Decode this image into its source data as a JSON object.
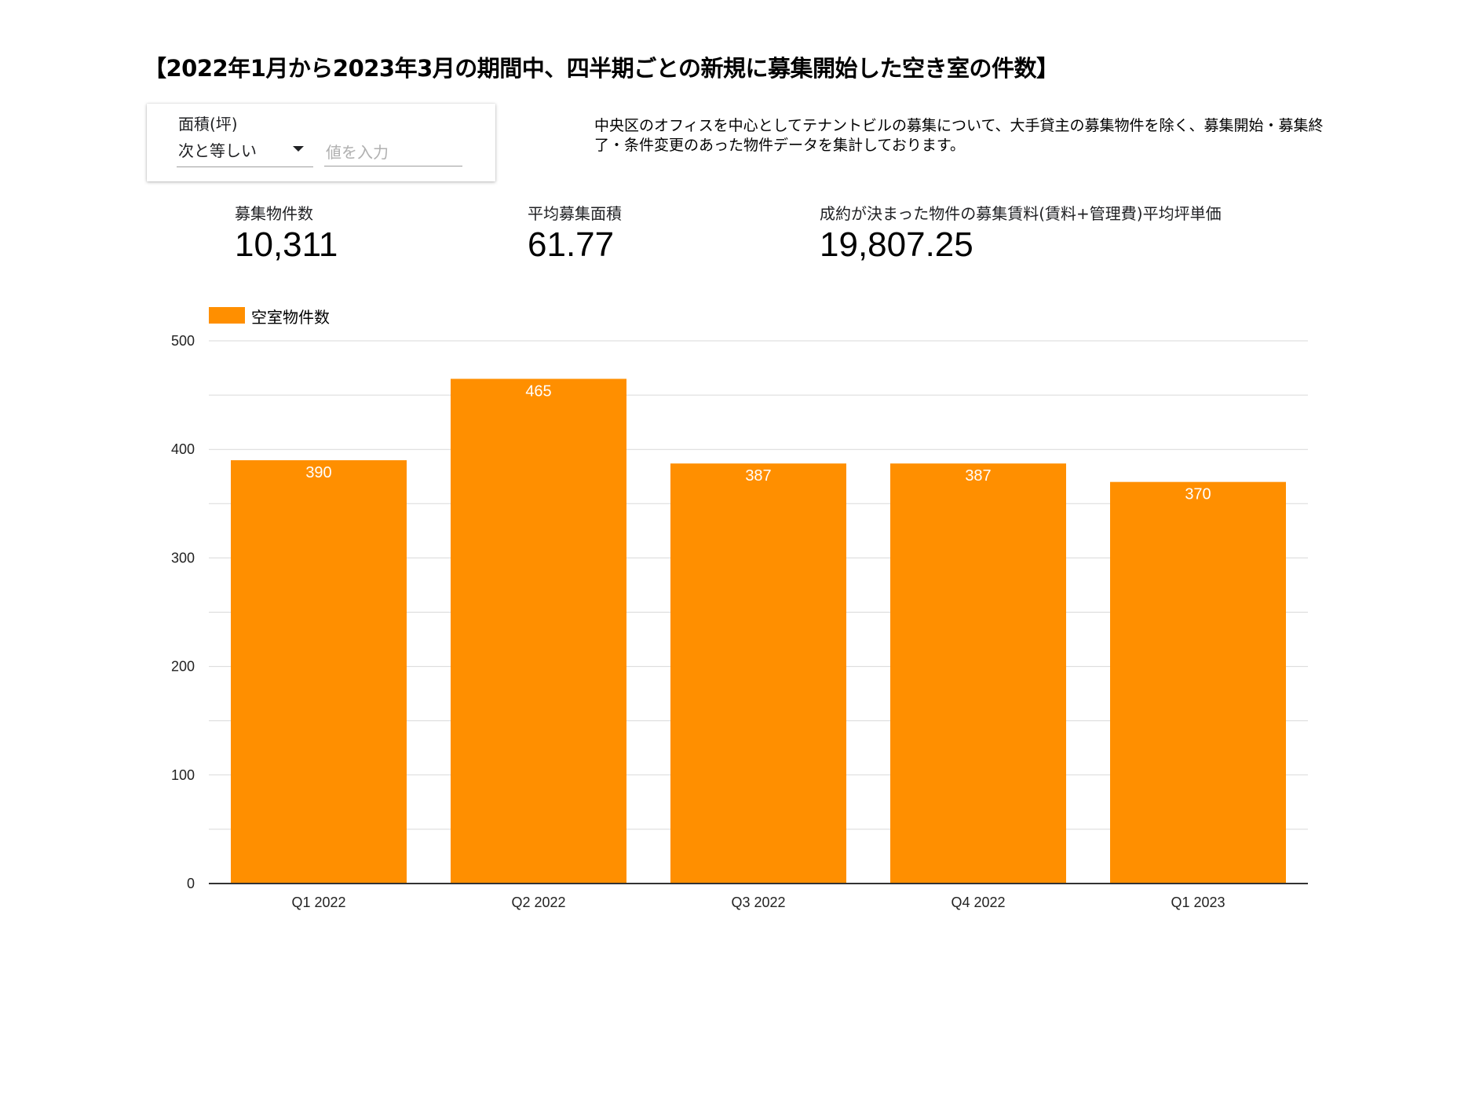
{
  "title": "【2022年1月から2023年3月の期間中、四半期ごとの新規に募集開始した空き室の件数】",
  "filter": {
    "label": "面積(坪)",
    "operator": "次と等しい",
    "value_placeholder": "値を入力",
    "value": ""
  },
  "description": "中央区のオフィスを中心としてテナントビルの募集について、大手貸主の募集物件を除く、募集開始・募集終了・条件変更のあった物件データを集計しております。",
  "kpis": [
    {
      "label": "募集物件数",
      "value": "10,311"
    },
    {
      "label": "平均募集面積",
      "value": "61.77"
    },
    {
      "label": "成約が決まった物件の募集賃料(賃料+管理費)平均坪単価",
      "value": "19,807.25"
    }
  ],
  "colors": {
    "bar": "#ff8f00",
    "grid": "#d9d9d9",
    "axis": "#333333",
    "bar_label": "#ffffff"
  },
  "chart_data": {
    "type": "bar",
    "categories": [
      "Q1 2022",
      "Q2 2022",
      "Q3 2022",
      "Q4 2022",
      "Q1 2023"
    ],
    "series": [
      {
        "name": "空室物件数",
        "values": [
          390,
          465,
          387,
          387,
          370
        ]
      }
    ],
    "ylim": [
      0,
      500
    ],
    "yticks": [
      0,
      100,
      200,
      300,
      400,
      500
    ],
    "grid": true,
    "legend": "top-left",
    "data_labels": true
  }
}
